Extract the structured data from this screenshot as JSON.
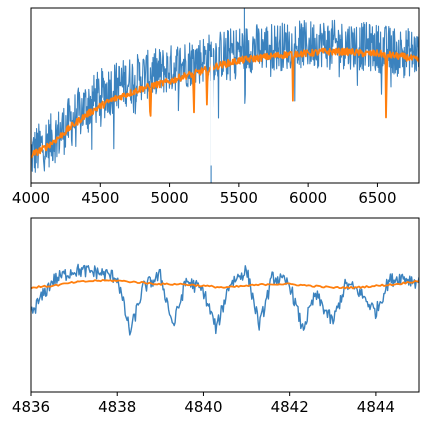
{
  "chart_data": [
    {
      "type": "line",
      "xlim": [
        4000,
        6800
      ],
      "xticks": [
        4000,
        4500,
        5000,
        5500,
        6000,
        6500
      ],
      "yticks": [],
      "grid": false,
      "series": [
        {
          "color": "#3b82be",
          "style": "noisy",
          "x": [
            4000,
            4100,
            4200,
            4300,
            4400,
            4500,
            4600,
            4700,
            4800,
            4900,
            5000,
            5100,
            5200,
            5300,
            5400,
            5500,
            5600,
            5700,
            5800,
            5900,
            6000,
            6100,
            6200,
            6300,
            6400,
            6500,
            6600,
            6700,
            6800
          ],
          "y": [
            0.16,
            0.22,
            0.28,
            0.36,
            0.44,
            0.5,
            0.55,
            0.58,
            0.61,
            0.63,
            0.65,
            0.68,
            0.7,
            0.72,
            0.74,
            0.76,
            0.77,
            0.78,
            0.78,
            0.79,
            0.79,
            0.8,
            0.79,
            0.79,
            0.78,
            0.77,
            0.76,
            0.75,
            0.74
          ]
        },
        {
          "color": "#ff7f0e",
          "style": "smooth",
          "x": [
            4000,
            4100,
            4200,
            4300,
            4400,
            4500,
            4600,
            4700,
            4800,
            4900,
            5000,
            5100,
            5200,
            5300,
            5400,
            5500,
            5600,
            5700,
            5800,
            5900,
            6000,
            6100,
            6200,
            6300,
            6400,
            6500,
            6600,
            6700,
            6800
          ],
          "y": [
            0.16,
            0.2,
            0.26,
            0.33,
            0.39,
            0.44,
            0.48,
            0.51,
            0.54,
            0.56,
            0.58,
            0.61,
            0.63,
            0.66,
            0.68,
            0.7,
            0.71,
            0.72,
            0.73,
            0.74,
            0.74,
            0.75,
            0.75,
            0.75,
            0.74,
            0.74,
            0.73,
            0.72,
            0.7
          ]
        }
      ],
      "absorption_lines": [
        4861,
        5175,
        5270,
        5890,
        6563
      ]
    },
    {
      "type": "line",
      "xlim": [
        4836,
        4845
      ],
      "xticks": [
        4836,
        4838,
        4840,
        4842,
        4844
      ],
      "yticks": [],
      "grid": false,
      "series": [
        {
          "color": "#3b82be",
          "style": "noisy",
          "x": [
            4836,
            4836.5,
            4837,
            4837.5,
            4838,
            4838.3,
            4838.6,
            4839,
            4839.3,
            4839.6,
            4840,
            4840.3,
            4840.6,
            4841,
            4841.3,
            4841.6,
            4842,
            4842.3,
            4842.6,
            4843,
            4843.3,
            4843.6,
            4844,
            4844.3,
            4844.6,
            4845
          ],
          "y": [
            0.45,
            0.64,
            0.7,
            0.69,
            0.66,
            0.34,
            0.6,
            0.67,
            0.38,
            0.64,
            0.58,
            0.36,
            0.62,
            0.7,
            0.38,
            0.66,
            0.62,
            0.36,
            0.56,
            0.4,
            0.62,
            0.58,
            0.46,
            0.64,
            0.66,
            0.63
          ]
        },
        {
          "color": "#ff7f0e",
          "style": "smooth",
          "x": [
            4836,
            4836.5,
            4837,
            4837.5,
            4838,
            4838.5,
            4839,
            4839.5,
            4840,
            4840.5,
            4841,
            4841.5,
            4842,
            4842.5,
            4843,
            4843.5,
            4844,
            4844.5,
            4845
          ],
          "y": [
            0.6,
            0.61,
            0.63,
            0.64,
            0.64,
            0.63,
            0.62,
            0.62,
            0.61,
            0.6,
            0.61,
            0.62,
            0.62,
            0.61,
            0.6,
            0.6,
            0.61,
            0.62,
            0.64
          ]
        }
      ]
    }
  ]
}
